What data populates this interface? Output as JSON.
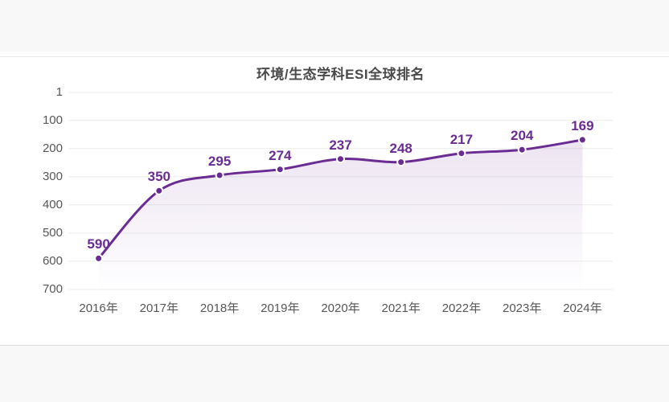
{
  "page": {
    "background": "#ffffff",
    "top_strip_color": "#f8f8f8",
    "bottom_strip_color": "#f8f8f8",
    "card_top_border_color": "#e8e8e8",
    "card_bottom_border_color": "#d9d9d9"
  },
  "chart_data": {
    "type": "line",
    "title": "环境/生态学科ESI全球排名",
    "categories": [
      "2016年",
      "2017年",
      "2018年",
      "2019年",
      "2020年",
      "2021年",
      "2022年",
      "2023年",
      "2024年"
    ],
    "values": [
      590,
      350,
      295,
      274,
      237,
      248,
      217,
      204,
      169
    ],
    "xlabel": "",
    "ylabel": "",
    "y_axis": {
      "inverted": true,
      "min": 1,
      "max": 700
    },
    "y_ticks": [
      1,
      100,
      200,
      300,
      400,
      500,
      600,
      700
    ],
    "grid": true,
    "legend": "none",
    "smooth": true,
    "area_fill": true,
    "colors": {
      "line": "#6a2c93",
      "point_fill": "#6a2c93",
      "point_ring": "#ffffff",
      "data_label": "#6a2c93",
      "area_top": "rgba(106,44,147,0.13)",
      "area_bottom": "rgba(106,44,147,0)",
      "gridline": "#ececec",
      "axis_text": "#565656",
      "title_text": "#4a4a4a"
    }
  }
}
